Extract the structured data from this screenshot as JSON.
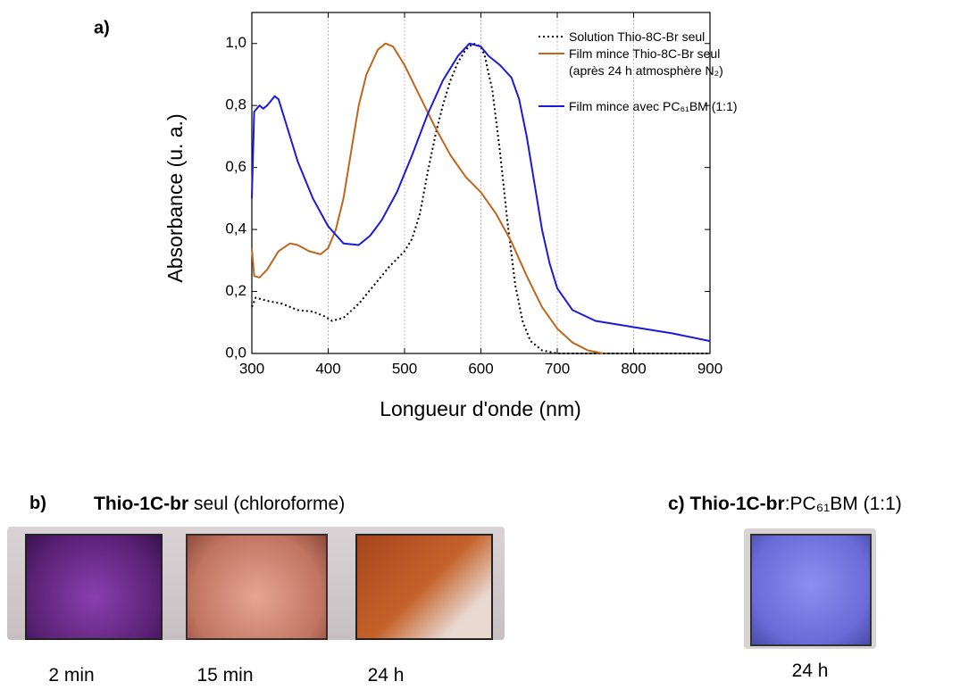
{
  "chart_data": {
    "type": "line",
    "panel_label": "a)",
    "x_label": "Longueur d'onde (nm)",
    "y_label": "Absorbance (u. a.)",
    "xlim": [
      300,
      900
    ],
    "xticks": [
      300,
      400,
      500,
      600,
      700,
      800,
      900
    ],
    "ylim": [
      0,
      1.1
    ],
    "yticks": [
      {
        "value": 0,
        "label": "0,0"
      },
      {
        "value": 0.2,
        "label": "0,2"
      },
      {
        "value": 0.4,
        "label": "0,4"
      },
      {
        "value": 0.6,
        "label": "0,6"
      },
      {
        "value": 0.8,
        "label": "0,8"
      },
      {
        "value": 1.0,
        "label": "1,0"
      }
    ],
    "grid": "x",
    "legend": "top-right",
    "series": [
      {
        "name": "Solution Thio-8C-Br seul",
        "color": "#000000",
        "style": "dotted",
        "x": [
          300,
          305,
          320,
          340,
          360,
          380,
          395,
          405,
          420,
          440,
          460,
          480,
          500,
          510,
          520,
          530,
          540,
          550,
          560,
          570,
          580,
          590,
          600,
          605,
          615,
          625,
          635,
          645,
          655,
          665,
          680,
          700,
          800,
          900
        ],
        "values": [
          0.15,
          0.18,
          0.17,
          0.16,
          0.14,
          0.135,
          0.12,
          0.105,
          0.115,
          0.16,
          0.22,
          0.28,
          0.33,
          0.37,
          0.45,
          0.58,
          0.7,
          0.8,
          0.88,
          0.94,
          0.98,
          1.0,
          0.99,
          0.96,
          0.85,
          0.65,
          0.42,
          0.22,
          0.1,
          0.04,
          0.01,
          0.0,
          0.0,
          0.0
        ]
      },
      {
        "name": "Film mince Thio-8C-Br seul (après 24 h atmosphère N₂)",
        "color": "#c0661c",
        "style": "solid",
        "x": [
          300,
          303,
          310,
          320,
          335,
          350,
          360,
          375,
          390,
          400,
          410,
          420,
          430,
          440,
          450,
          465,
          475,
          485,
          500,
          520,
          540,
          560,
          580,
          600,
          620,
          640,
          660,
          680,
          700,
          720,
          740,
          760
        ],
        "values": [
          0.34,
          0.25,
          0.245,
          0.27,
          0.33,
          0.355,
          0.35,
          0.33,
          0.32,
          0.34,
          0.4,
          0.5,
          0.65,
          0.8,
          0.9,
          0.98,
          1.0,
          0.99,
          0.93,
          0.83,
          0.73,
          0.64,
          0.57,
          0.52,
          0.45,
          0.36,
          0.25,
          0.15,
          0.08,
          0.035,
          0.01,
          0.0
        ]
      },
      {
        "name": "Film mince avec PC₆₁BM (1:1)",
        "color": "#1a1adc",
        "style": "solid",
        "x": [
          300,
          303,
          310,
          315,
          320,
          330,
          335,
          345,
          360,
          380,
          400,
          420,
          440,
          455,
          470,
          490,
          510,
          530,
          550,
          570,
          585,
          600,
          610,
          625,
          640,
          650,
          660,
          670,
          680,
          690,
          700,
          720,
          750,
          800,
          850,
          900
        ],
        "values": [
          0.5,
          0.78,
          0.8,
          0.79,
          0.8,
          0.83,
          0.82,
          0.74,
          0.62,
          0.5,
          0.41,
          0.355,
          0.35,
          0.38,
          0.43,
          0.52,
          0.64,
          0.77,
          0.88,
          0.96,
          1.0,
          0.99,
          0.96,
          0.93,
          0.89,
          0.82,
          0.7,
          0.55,
          0.4,
          0.29,
          0.21,
          0.14,
          0.105,
          0.085,
          0.065,
          0.04
        ]
      }
    ]
  },
  "panel_b": {
    "label": "b)",
    "title_bold": "Thio-1C-br",
    "title_rest": "seul (chloroforme)",
    "captions": [
      "2 min",
      "15 min",
      "24 h"
    ]
  },
  "panel_c": {
    "label": "c)",
    "title_bold": "Thio-1C-br",
    "title_rest": ":PC₆₁BM (1:1)",
    "caption": "24 h"
  }
}
